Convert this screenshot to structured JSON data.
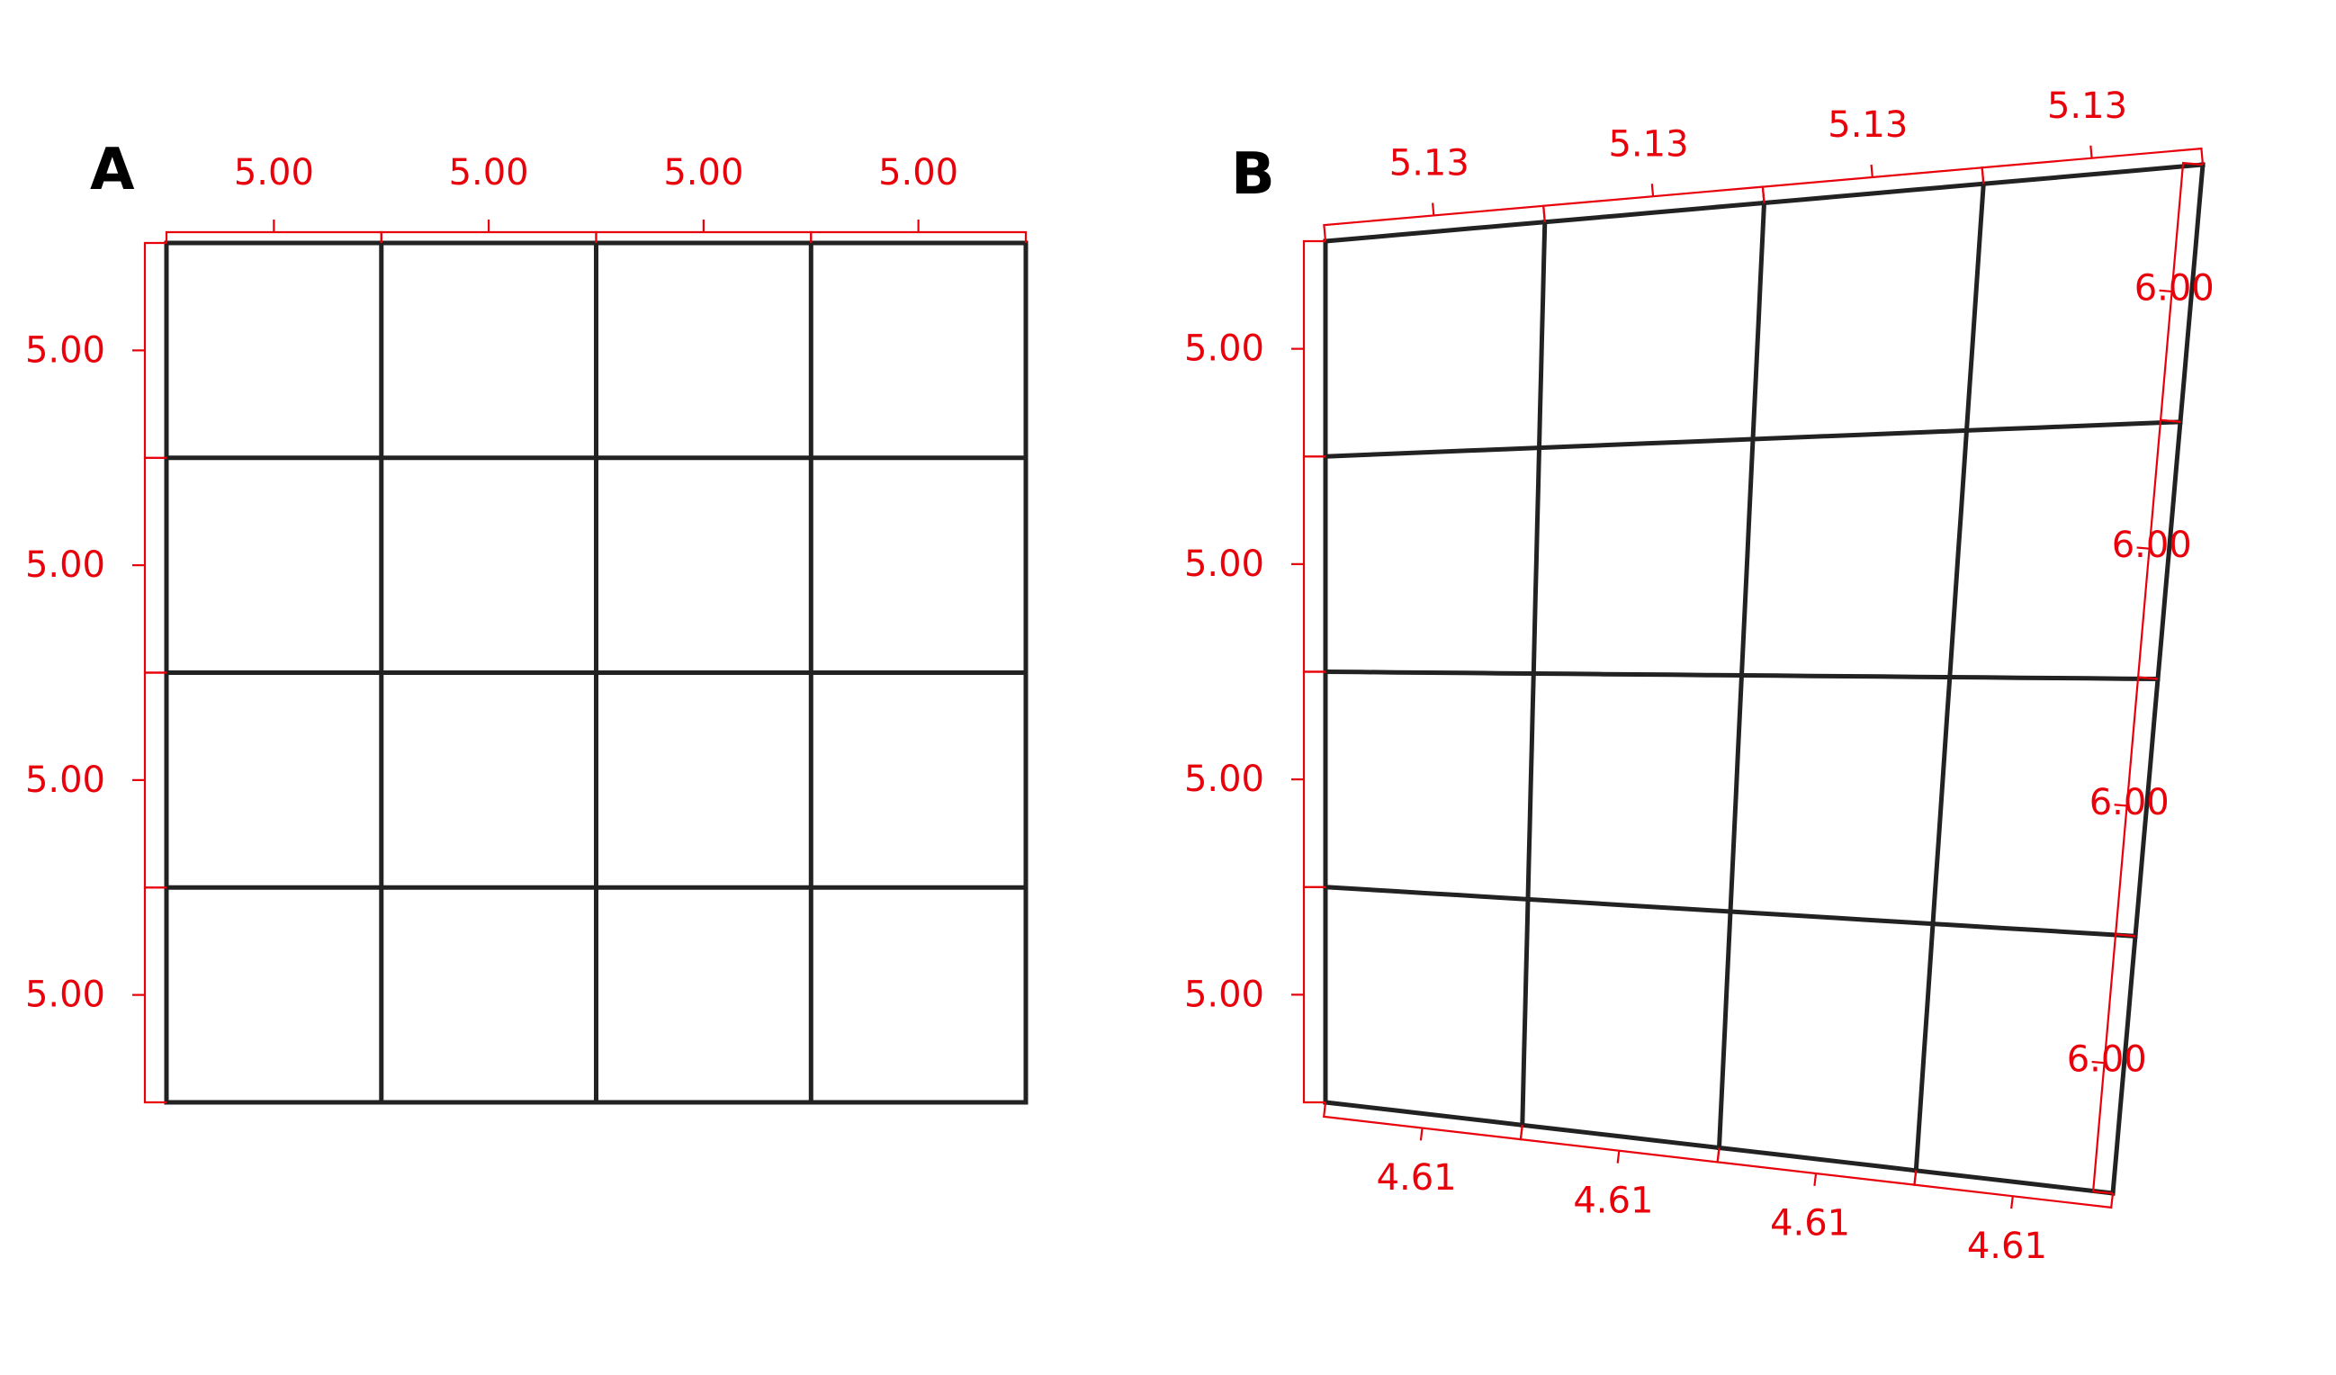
{
  "colors": {
    "grid": "#222222",
    "dimension": "#e8000b",
    "background": "#ffffff"
  },
  "panels": [
    {
      "label": "A",
      "top_labels": [
        "5.00",
        "5.00",
        "5.00",
        "5.00"
      ],
      "left_labels": [
        "5.00",
        "5.00",
        "5.00",
        "5.00"
      ]
    },
    {
      "label": "B",
      "top_labels": [
        "5.13",
        "5.13",
        "5.13",
        "5.13"
      ],
      "left_labels": [
        "5.00",
        "5.00",
        "5.00",
        "5.00"
      ],
      "right_labels": [
        "6.00",
        "6.00",
        "6.00",
        "6.00"
      ],
      "bottom_labels": [
        "4.61",
        "4.61",
        "4.61",
        "4.61"
      ]
    }
  ]
}
